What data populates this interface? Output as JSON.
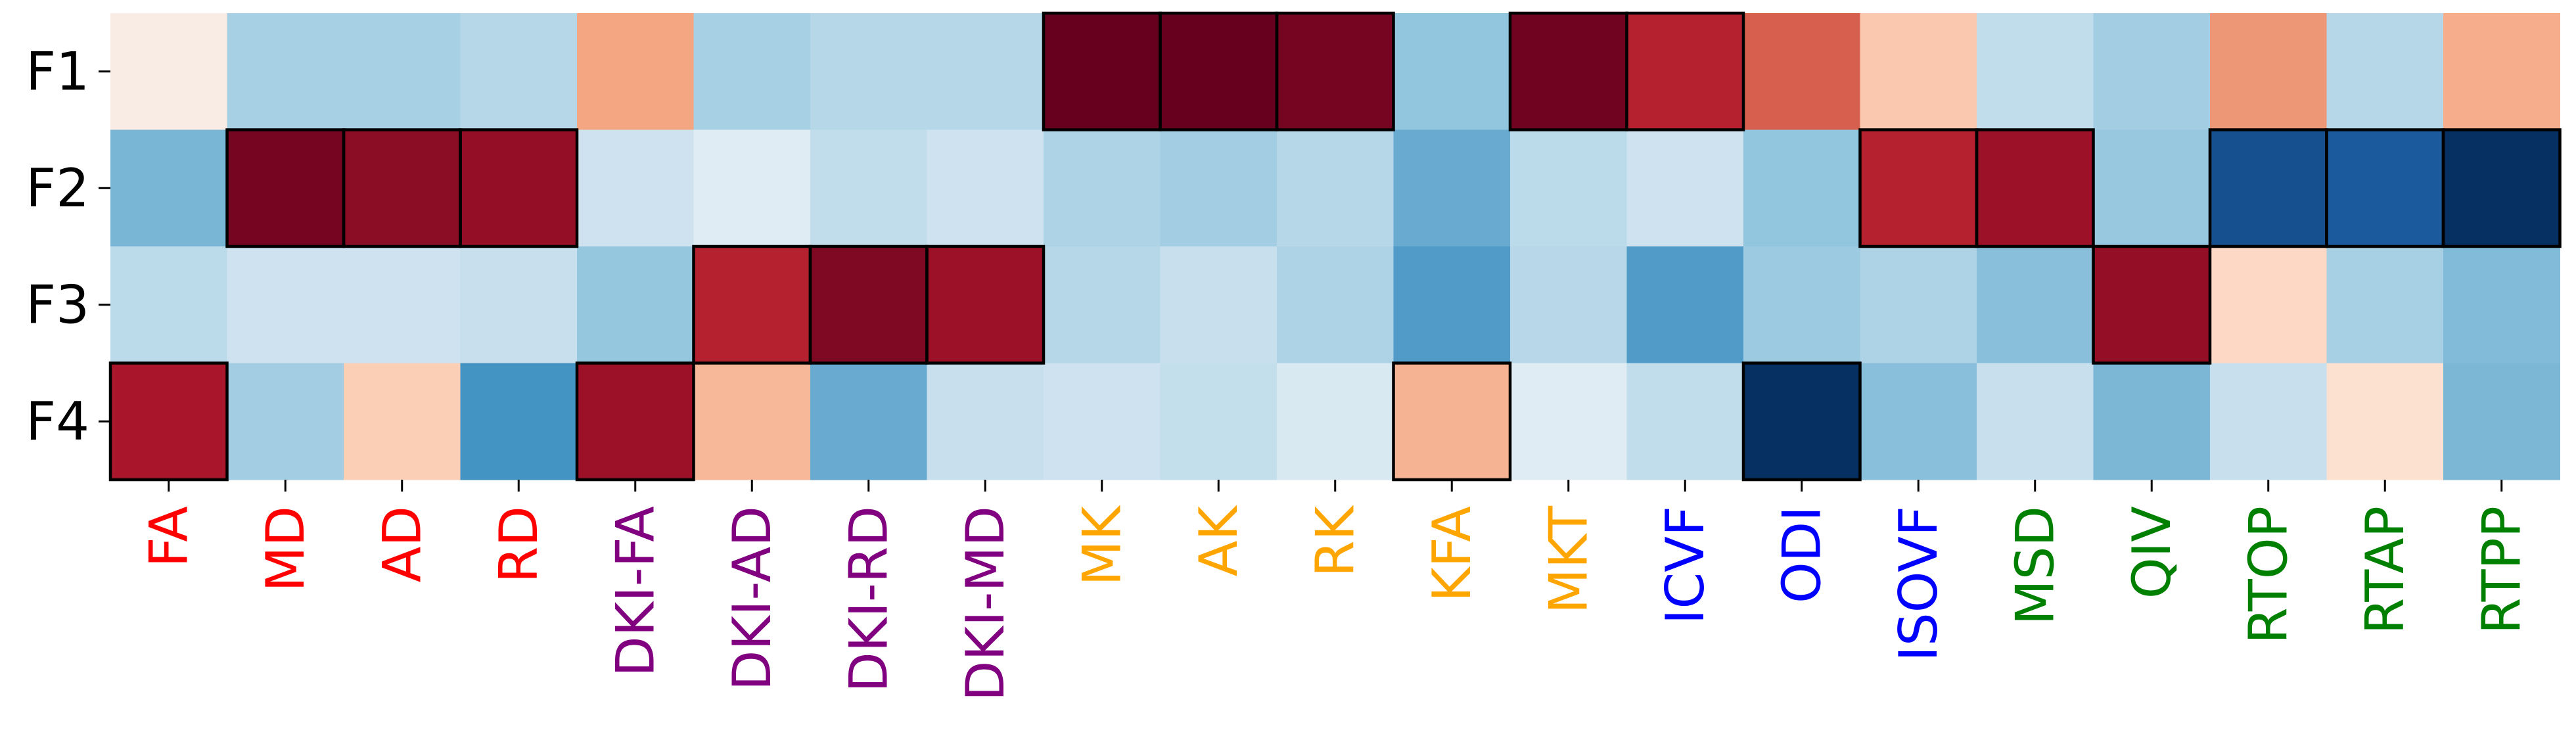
{
  "chart_data": {
    "type": "heatmap",
    "title": "",
    "xlabel": "",
    "ylabel": "",
    "rows": [
      "F1",
      "F2",
      "F3",
      "F4"
    ],
    "columns": [
      {
        "label": "FA",
        "color": "#ff0000"
      },
      {
        "label": "MD",
        "color": "#ff0000"
      },
      {
        "label": "AD",
        "color": "#ff0000"
      },
      {
        "label": "RD",
        "color": "#ff0000"
      },
      {
        "label": "DKI-FA",
        "color": "#800080"
      },
      {
        "label": "DKI-AD",
        "color": "#800080"
      },
      {
        "label": "DKI-RD",
        "color": "#800080"
      },
      {
        "label": "DKI-MD",
        "color": "#800080"
      },
      {
        "label": "MK",
        "color": "#ffa500"
      },
      {
        "label": "AK",
        "color": "#ffa500"
      },
      {
        "label": "RK",
        "color": "#ffa500"
      },
      {
        "label": "KFA",
        "color": "#ffa500"
      },
      {
        "label": "MKT",
        "color": "#ffa500"
      },
      {
        "label": "ICVF",
        "color": "#0000ff"
      },
      {
        "label": "ODI",
        "color": "#0000ff"
      },
      {
        "label": "ISOVF",
        "color": "#0000ff"
      },
      {
        "label": "MSD",
        "color": "#008000"
      },
      {
        "label": "QIV",
        "color": "#008000"
      },
      {
        "label": "RTOP",
        "color": "#008000"
      },
      {
        "label": "RTAP",
        "color": "#008000"
      },
      {
        "label": "RTPP",
        "color": "#008000"
      }
    ],
    "values": [
      [
        0.02,
        -0.18,
        -0.18,
        -0.14,
        0.25,
        -0.18,
        -0.14,
        -0.14,
        1.0,
        1.0,
        0.95,
        -0.25,
        0.97,
        0.72,
        0.5,
        0.12,
        -0.1,
        -0.2,
        0.3,
        -0.14,
        0.22
      ],
      [
        -0.33,
        0.95,
        0.88,
        0.85,
        -0.06,
        -0.03,
        -0.1,
        -0.06,
        -0.16,
        -0.2,
        -0.14,
        -0.38,
        -0.12,
        -0.06,
        -0.25,
        0.72,
        0.82,
        -0.23,
        -0.85,
        -0.8,
        -1.0
      ],
      [
        -0.12,
        -0.06,
        -0.06,
        -0.08,
        -0.24,
        0.72,
        0.92,
        0.82,
        -0.14,
        -0.08,
        -0.16,
        -0.46,
        -0.13,
        -0.46,
        -0.22,
        -0.16,
        -0.28,
        0.85,
        0.06,
        -0.18,
        -0.3
      ],
      [
        0.78,
        -0.2,
        0.1,
        -0.5,
        0.82,
        0.18,
        -0.38,
        -0.08,
        -0.06,
        -0.09,
        -0.04,
        0.2,
        -0.03,
        -0.1,
        -1.0,
        -0.28,
        -0.08,
        -0.32,
        -0.08,
        0.04,
        -0.32
      ]
    ],
    "highlighted_cells": [
      [
        0,
        8
      ],
      [
        0,
        9
      ],
      [
        0,
        10
      ],
      [
        0,
        12
      ],
      [
        0,
        13
      ],
      [
        1,
        1
      ],
      [
        1,
        2
      ],
      [
        1,
        3
      ],
      [
        1,
        15
      ],
      [
        1,
        16
      ],
      [
        1,
        18
      ],
      [
        1,
        19
      ],
      [
        1,
        20
      ],
      [
        2,
        5
      ],
      [
        2,
        6
      ],
      [
        2,
        7
      ],
      [
        2,
        17
      ],
      [
        3,
        0
      ],
      [
        3,
        4
      ],
      [
        3,
        11
      ],
      [
        3,
        14
      ]
    ],
    "colormap": "RdBu_r",
    "value_range": [
      -1,
      1
    ],
    "colorbar": false,
    "grid": false
  }
}
